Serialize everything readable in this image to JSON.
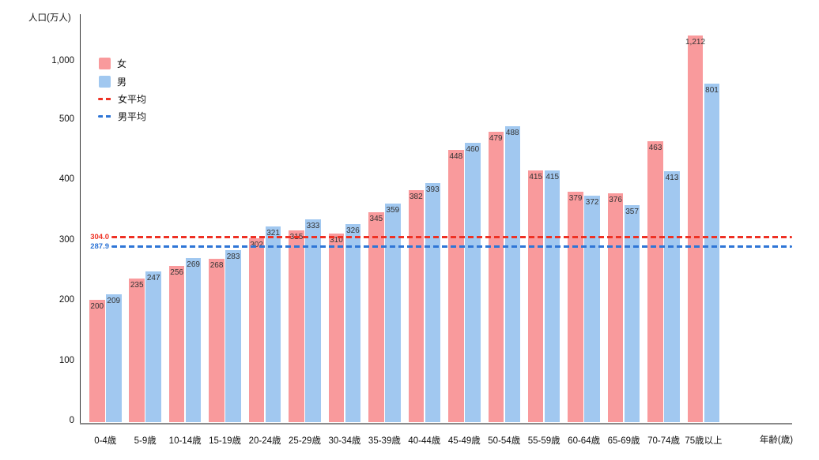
{
  "chart_data": {
    "type": "bar",
    "title": "",
    "ylabel": "人口(万人)",
    "xlabel": "年齢(歳)",
    "categories": [
      "0-4歳",
      "5-9歳",
      "10-14歳",
      "15-19歳",
      "20-24歳",
      "25-29歳",
      "30-34歳",
      "35-39歳",
      "40-44歳",
      "45-49歳",
      "50-54歳",
      "55-59歳",
      "60-64歳",
      "65-69歳",
      "70-74歳",
      "75歳以上"
    ],
    "series": [
      {
        "name": "女",
        "color": "#F99A9C",
        "values": [
          200,
          235,
          256,
          268,
          302,
          315,
          310,
          345,
          382,
          448,
          479,
          415,
          379,
          376,
          463,
          1212
        ],
        "labels": [
          "200",
          "235",
          "256",
          "268",
          "302",
          "315",
          "310",
          "345",
          "382",
          "448",
          "479",
          "415",
          "379",
          "376",
          "463",
          "1,212"
        ]
      },
      {
        "name": "男",
        "color": "#A1C8F0",
        "values": [
          209,
          247,
          269,
          283,
          321,
          333,
          326,
          359,
          393,
          460,
          488,
          415,
          372,
          357,
          413,
          801
        ],
        "labels": [
          "209",
          "247",
          "269",
          "283",
          "321",
          "333",
          "326",
          "359",
          "393",
          "460",
          "488",
          "415",
          "372",
          "357",
          "413",
          "801"
        ]
      }
    ],
    "avg_lines": [
      {
        "name": "女平均",
        "value": 304.0,
        "label": "304.0",
        "color": "#EE3124"
      },
      {
        "name": "男平均",
        "value": 287.9,
        "label": "287.9",
        "color": "#2E75D6"
      }
    ],
    "y_ticks": [
      0,
      100,
      200,
      300,
      400,
      500,
      1000
    ],
    "y_tick_labels": [
      "0",
      "100",
      "200",
      "300",
      "400",
      "500",
      "1,000"
    ],
    "ylim_note": "axis compressed above 500 (500-1000 shown in one tick step)",
    "legend_position": "top-left inside plot",
    "grid": false,
    "bar_label_color": "#333333",
    "axis_line_color": "#333333"
  }
}
